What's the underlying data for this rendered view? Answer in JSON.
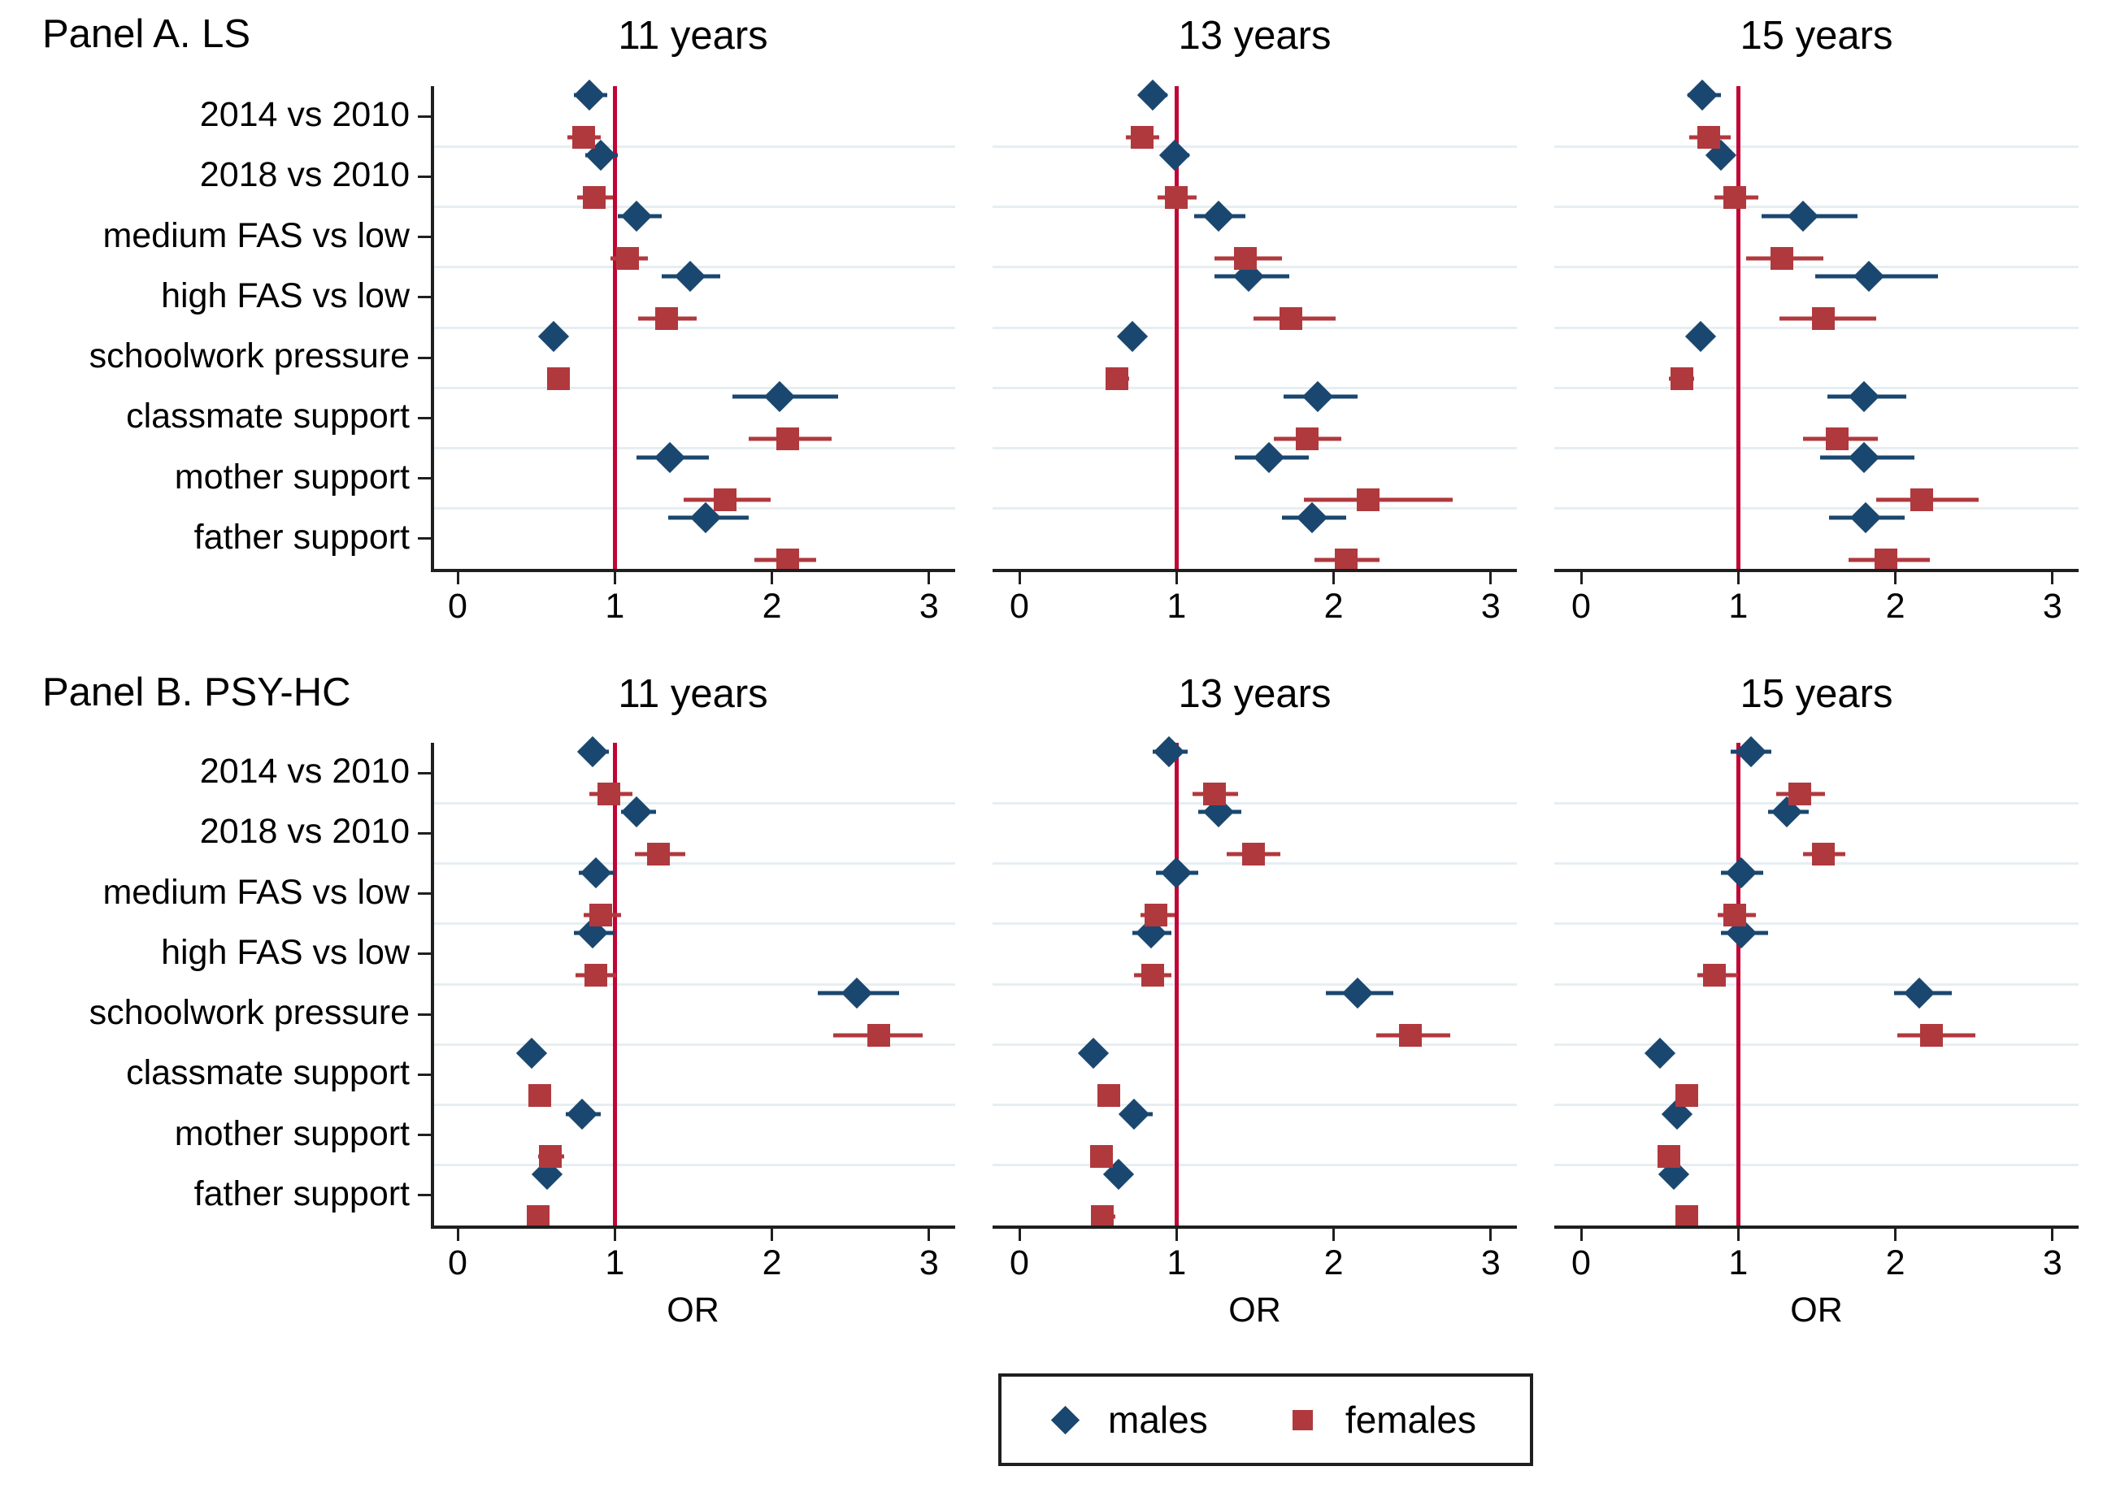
{
  "colors": {
    "males": "#1a476f",
    "females": "#b0393e",
    "reference_line": "#c10534",
    "gridline": "#e7eef2",
    "axis": "#1f1f1f",
    "text": "#000000",
    "background": "#ffffff"
  },
  "legend": {
    "males_label": "males",
    "females_label": "females"
  },
  "chart_data": {
    "type": "scatter",
    "subtype": "forest-plot-odds-ratios",
    "x_unit": "OR",
    "xticks": [
      0,
      1,
      2,
      3
    ],
    "xlim": [
      -0.17,
      3.17
    ],
    "reference_line_x": 1,
    "grid": true,
    "legend_position": "bottom-center",
    "categories": [
      "2014 vs 2010",
      "2018 vs 2010",
      "medium FAS vs low",
      "high FAS vs low",
      "schoolwork pressure",
      "classmate support",
      "mother support",
      "father support"
    ],
    "age_group_titles": [
      "11 years",
      "13 years",
      "15 years"
    ],
    "panels": [
      {
        "label": "Panel A. LS",
        "outcome": "LS",
        "x_axis_label": "",
        "subplots": [
          {
            "title": "11 years",
            "males": [
              {
                "or": 0.84,
                "lo": 0.74,
                "hi": 0.95
              },
              {
                "or": 0.91,
                "lo": 0.81,
                "hi": 1.02
              },
              {
                "or": 1.14,
                "lo": 1.02,
                "hi": 1.3
              },
              {
                "or": 1.48,
                "lo": 1.3,
                "hi": 1.67
              },
              {
                "or": 0.61,
                "lo": 0.54,
                "hi": 0.68
              },
              {
                "or": 2.05,
                "lo": 1.75,
                "hi": 2.42
              },
              {
                "or": 1.35,
                "lo": 1.14,
                "hi": 1.6
              },
              {
                "or": 1.58,
                "lo": 1.34,
                "hi": 1.85
              }
            ],
            "females": [
              {
                "or": 0.8,
                "lo": 0.7,
                "hi": 0.91
              },
              {
                "or": 0.87,
                "lo": 0.76,
                "hi": 0.99
              },
              {
                "or": 1.08,
                "lo": 0.97,
                "hi": 1.21
              },
              {
                "or": 1.33,
                "lo": 1.15,
                "hi": 1.52
              },
              {
                "or": 0.64,
                "lo": 0.57,
                "hi": 0.71
              },
              {
                "or": 2.1,
                "lo": 1.85,
                "hi": 2.38
              },
              {
                "or": 1.7,
                "lo": 1.44,
                "hi": 1.99
              },
              {
                "or": 2.1,
                "lo": 1.89,
                "hi": 2.28
              }
            ]
          },
          {
            "title": "13 years",
            "males": [
              {
                "or": 0.85,
                "lo": 0.76,
                "hi": 0.94
              },
              {
                "or": 0.99,
                "lo": 0.9,
                "hi": 1.08
              },
              {
                "or": 1.27,
                "lo": 1.11,
                "hi": 1.44
              },
              {
                "or": 1.46,
                "lo": 1.24,
                "hi": 1.72
              },
              {
                "or": 0.72,
                "lo": 0.65,
                "hi": 0.79
              },
              {
                "or": 1.9,
                "lo": 1.68,
                "hi": 2.15
              },
              {
                "or": 1.59,
                "lo": 1.37,
                "hi": 1.84
              },
              {
                "or": 1.86,
                "lo": 1.67,
                "hi": 2.08
              }
            ],
            "females": [
              {
                "or": 0.78,
                "lo": 0.68,
                "hi": 0.89
              },
              {
                "or": 1.0,
                "lo": 0.88,
                "hi": 1.13
              },
              {
                "or": 1.44,
                "lo": 1.24,
                "hi": 1.67
              },
              {
                "or": 1.73,
                "lo": 1.49,
                "hi": 2.01
              },
              {
                "or": 0.62,
                "lo": 0.55,
                "hi": 0.7
              },
              {
                "or": 1.83,
                "lo": 1.62,
                "hi": 2.05
              },
              {
                "or": 2.22,
                "lo": 1.81,
                "hi": 2.76
              },
              {
                "or": 2.08,
                "lo": 1.88,
                "hi": 2.29
              }
            ]
          },
          {
            "title": "15 years",
            "males": [
              {
                "or": 0.77,
                "lo": 0.68,
                "hi": 0.89
              },
              {
                "or": 0.89,
                "lo": 0.8,
                "hi": 0.98
              },
              {
                "or": 1.41,
                "lo": 1.15,
                "hi": 1.76
              },
              {
                "or": 1.83,
                "lo": 1.49,
                "hi": 2.27
              },
              {
                "or": 0.76,
                "lo": 0.68,
                "hi": 0.84
              },
              {
                "or": 1.8,
                "lo": 1.57,
                "hi": 2.07
              },
              {
                "or": 1.8,
                "lo": 1.52,
                "hi": 2.12
              },
              {
                "or": 1.81,
                "lo": 1.58,
                "hi": 2.06
              }
            ],
            "females": [
              {
                "or": 0.81,
                "lo": 0.69,
                "hi": 0.95
              },
              {
                "or": 0.98,
                "lo": 0.85,
                "hi": 1.13
              },
              {
                "or": 1.28,
                "lo": 1.05,
                "hi": 1.54
              },
              {
                "or": 1.54,
                "lo": 1.26,
                "hi": 1.88
              },
              {
                "or": 0.64,
                "lo": 0.56,
                "hi": 0.72
              },
              {
                "or": 1.63,
                "lo": 1.41,
                "hi": 1.89
              },
              {
                "or": 2.17,
                "lo": 1.88,
                "hi": 2.53
              },
              {
                "or": 1.94,
                "lo": 1.7,
                "hi": 2.22
              }
            ]
          }
        ]
      },
      {
        "label": "Panel B. PSY-HC",
        "outcome": "PSY-HC",
        "x_axis_label": "OR",
        "subplots": [
          {
            "title": "11 years",
            "males": [
              {
                "or": 0.86,
                "lo": 0.77,
                "hi": 0.96
              },
              {
                "or": 1.14,
                "lo": 1.04,
                "hi": 1.26
              },
              {
                "or": 0.88,
                "lo": 0.77,
                "hi": 1.0
              },
              {
                "or": 0.86,
                "lo": 0.74,
                "hi": 1.0
              },
              {
                "or": 2.54,
                "lo": 2.29,
                "hi": 2.81
              },
              {
                "or": 0.47,
                "lo": 0.42,
                "hi": 0.53
              },
              {
                "or": 0.79,
                "lo": 0.69,
                "hi": 0.91
              },
              {
                "or": 0.57,
                "lo": 0.5,
                "hi": 0.65
              }
            ],
            "females": [
              {
                "or": 0.96,
                "lo": 0.84,
                "hi": 1.11
              },
              {
                "or": 1.28,
                "lo": 1.13,
                "hi": 1.45
              },
              {
                "or": 0.91,
                "lo": 0.8,
                "hi": 1.04
              },
              {
                "or": 0.88,
                "lo": 0.75,
                "hi": 1.01
              },
              {
                "or": 2.68,
                "lo": 2.39,
                "hi": 2.96
              },
              {
                "or": 0.52,
                "lo": 0.47,
                "hi": 0.58
              },
              {
                "or": 0.59,
                "lo": 0.51,
                "hi": 0.68
              },
              {
                "or": 0.51,
                "lo": 0.45,
                "hi": 0.57
              }
            ]
          },
          {
            "title": "13 years",
            "males": [
              {
                "or": 0.95,
                "lo": 0.85,
                "hi": 1.07
              },
              {
                "or": 1.27,
                "lo": 1.14,
                "hi": 1.41
              },
              {
                "or": 1.0,
                "lo": 0.87,
                "hi": 1.14
              },
              {
                "or": 0.84,
                "lo": 0.72,
                "hi": 0.97
              },
              {
                "or": 2.15,
                "lo": 1.95,
                "hi": 2.38
              },
              {
                "or": 0.47,
                "lo": 0.41,
                "hi": 0.51
              },
              {
                "or": 0.73,
                "lo": 0.65,
                "hi": 0.85
              },
              {
                "or": 0.63,
                "lo": 0.55,
                "hi": 0.72
              }
            ],
            "females": [
              {
                "or": 1.24,
                "lo": 1.1,
                "hi": 1.39
              },
              {
                "or": 1.49,
                "lo": 1.32,
                "hi": 1.66
              },
              {
                "or": 0.87,
                "lo": 0.77,
                "hi": 0.99
              },
              {
                "or": 0.85,
                "lo": 0.73,
                "hi": 0.97
              },
              {
                "or": 2.49,
                "lo": 2.27,
                "hi": 2.74
              },
              {
                "or": 0.57,
                "lo": 0.52,
                "hi": 0.61
              },
              {
                "or": 0.52,
                "lo": 0.45,
                "hi": 0.59
              },
              {
                "or": 0.53,
                "lo": 0.46,
                "hi": 0.61
              }
            ]
          },
          {
            "title": "15 years",
            "males": [
              {
                "or": 1.08,
                "lo": 0.95,
                "hi": 1.21
              },
              {
                "or": 1.31,
                "lo": 1.19,
                "hi": 1.45
              },
              {
                "or": 1.02,
                "lo": 0.89,
                "hi": 1.16
              },
              {
                "or": 1.02,
                "lo": 0.89,
                "hi": 1.19
              },
              {
                "or": 2.15,
                "lo": 1.99,
                "hi": 2.36
              },
              {
                "or": 0.5,
                "lo": 0.44,
                "hi": 0.55
              },
              {
                "or": 0.61,
                "lo": 0.55,
                "hi": 0.68
              },
              {
                "or": 0.59,
                "lo": 0.53,
                "hi": 0.66
              }
            ],
            "females": [
              {
                "or": 1.39,
                "lo": 1.24,
                "hi": 1.55
              },
              {
                "or": 1.54,
                "lo": 1.41,
                "hi": 1.68
              },
              {
                "or": 0.98,
                "lo": 0.87,
                "hi": 1.11
              },
              {
                "or": 0.85,
                "lo": 0.74,
                "hi": 1.0
              },
              {
                "or": 2.23,
                "lo": 2.01,
                "hi": 2.51
              },
              {
                "or": 0.67,
                "lo": 0.61,
                "hi": 0.73
              },
              {
                "or": 0.56,
                "lo": 0.5,
                "hi": 0.63
              },
              {
                "or": 0.67,
                "lo": 0.6,
                "hi": 0.74
              }
            ]
          }
        ]
      }
    ]
  }
}
